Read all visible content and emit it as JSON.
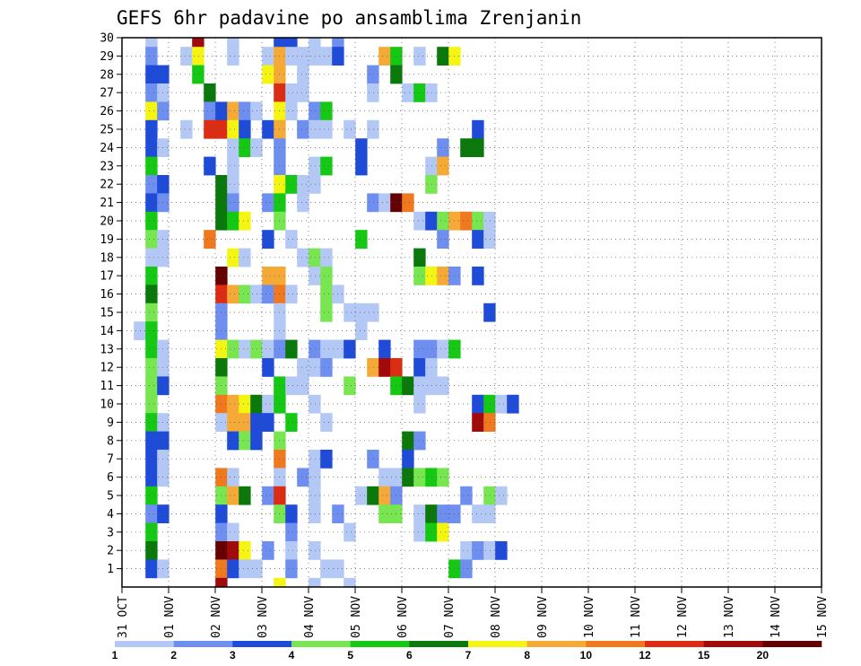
{
  "chart_data": {
    "type": "heatmap",
    "title": "GEFS 6hr padavine po ansamblima Zrenjanin",
    "x_tick_labels": [
      "31 OCT",
      "01 NOV",
      "02 NOV",
      "03 NOV",
      "04 NOV",
      "05 NOV",
      "06 NOV",
      "07 NOV",
      "08 NOV",
      "09 NOV",
      "10 NOV",
      "11 NOV",
      "12 NOV",
      "13 NOV",
      "14 NOV",
      "15 NOV"
    ],
    "y_tick_labels": [
      "1",
      "2",
      "3",
      "4",
      "5",
      "6",
      "7",
      "8",
      "9",
      "10",
      "11",
      "12",
      "13",
      "14",
      "15",
      "16",
      "17",
      "18",
      "19",
      "20",
      "21",
      "22",
      "23",
      "24",
      "25",
      "26",
      "27",
      "28",
      "29",
      "30"
    ],
    "ylim": [
      0,
      30
    ],
    "grid": true,
    "colorbar": {
      "labels": [
        "1",
        "2",
        "3",
        "4",
        "5",
        "6",
        "7",
        "8",
        "10",
        "12",
        "15",
        "20"
      ],
      "colors": [
        "#b4c8f5",
        "#6e8ef0",
        "#1e4bd8",
        "#78e650",
        "#14c814",
        "#0a780a",
        "#f5f514",
        "#f5aa37",
        "#f0781e",
        "#dc2d14",
        "#a00a0a",
        "#640000"
      ]
    },
    "cells": [
      [
        1,
        30,
        0
      ],
      [
        5,
        30,
        10
      ],
      [
        8,
        30,
        0
      ],
      [
        12,
        30,
        2
      ],
      [
        13,
        30,
        2
      ],
      [
        15,
        30,
        0
      ],
      [
        17,
        30,
        1
      ],
      [
        1,
        29,
        1
      ],
      [
        4,
        29,
        0
      ],
      [
        5,
        29,
        6
      ],
      [
        8,
        29,
        0
      ],
      [
        11,
        29,
        0
      ],
      [
        12,
        29,
        7
      ],
      [
        13,
        29,
        0
      ],
      [
        14,
        29,
        0
      ],
      [
        15,
        29,
        0
      ],
      [
        16,
        29,
        0
      ],
      [
        17,
        29,
        2
      ],
      [
        21,
        29,
        7
      ],
      [
        22,
        29,
        4
      ],
      [
        24,
        29,
        0
      ],
      [
        26,
        29,
        5
      ],
      [
        27,
        29,
        6
      ],
      [
        1,
        28,
        2
      ],
      [
        2,
        28,
        2
      ],
      [
        5,
        28,
        4
      ],
      [
        11,
        28,
        6
      ],
      [
        12,
        28,
        7
      ],
      [
        14,
        28,
        0
      ],
      [
        20,
        28,
        1
      ],
      [
        22,
        28,
        5
      ],
      [
        1,
        27,
        1
      ],
      [
        2,
        27,
        0
      ],
      [
        6,
        27,
        5
      ],
      [
        12,
        27,
        9
      ],
      [
        13,
        27,
        0
      ],
      [
        14,
        27,
        0
      ],
      [
        20,
        27,
        0
      ],
      [
        23,
        27,
        0
      ],
      [
        24,
        27,
        4
      ],
      [
        25,
        27,
        0
      ],
      [
        1,
        26,
        6
      ],
      [
        2,
        26,
        1
      ],
      [
        6,
        26,
        1
      ],
      [
        7,
        26,
        2
      ],
      [
        8,
        26,
        7
      ],
      [
        9,
        26,
        1
      ],
      [
        10,
        26,
        0
      ],
      [
        12,
        26,
        6
      ],
      [
        13,
        26,
        0
      ],
      [
        15,
        26,
        1
      ],
      [
        16,
        26,
        4
      ],
      [
        1,
        25,
        2
      ],
      [
        4,
        25,
        0
      ],
      [
        6,
        25,
        9
      ],
      [
        7,
        25,
        9
      ],
      [
        8,
        25,
        6
      ],
      [
        9,
        25,
        2
      ],
      [
        11,
        25,
        2
      ],
      [
        12,
        25,
        7
      ],
      [
        14,
        25,
        1
      ],
      [
        15,
        25,
        0
      ],
      [
        16,
        25,
        0
      ],
      [
        18,
        25,
        0
      ],
      [
        20,
        25,
        0
      ],
      [
        29,
        25,
        2
      ],
      [
        1,
        24,
        2
      ],
      [
        2,
        24,
        0
      ],
      [
        8,
        24,
        0
      ],
      [
        9,
        24,
        4
      ],
      [
        10,
        24,
        0
      ],
      [
        12,
        24,
        1
      ],
      [
        19,
        24,
        2
      ],
      [
        26,
        24,
        1
      ],
      [
        28,
        24,
        5
      ],
      [
        29,
        24,
        5
      ],
      [
        1,
        23,
        4
      ],
      [
        6,
        23,
        2
      ],
      [
        8,
        23,
        0
      ],
      [
        12,
        23,
        1
      ],
      [
        15,
        23,
        0
      ],
      [
        16,
        23,
        4
      ],
      [
        19,
        23,
        2
      ],
      [
        25,
        23,
        0
      ],
      [
        26,
        23,
        7
      ],
      [
        1,
        22,
        1
      ],
      [
        2,
        22,
        2
      ],
      [
        7,
        22,
        5
      ],
      [
        8,
        22,
        0
      ],
      [
        12,
        22,
        6
      ],
      [
        13,
        22,
        4
      ],
      [
        14,
        22,
        0
      ],
      [
        15,
        22,
        0
      ],
      [
        25,
        22,
        3
      ],
      [
        1,
        21,
        2
      ],
      [
        2,
        21,
        1
      ],
      [
        7,
        21,
        5
      ],
      [
        8,
        21,
        1
      ],
      [
        11,
        21,
        1
      ],
      [
        12,
        21,
        4
      ],
      [
        14,
        21,
        0
      ],
      [
        20,
        21,
        1
      ],
      [
        21,
        21,
        0
      ],
      [
        22,
        21,
        11
      ],
      [
        23,
        21,
        8
      ],
      [
        1,
        20,
        4
      ],
      [
        7,
        20,
        5
      ],
      [
        8,
        20,
        4
      ],
      [
        9,
        20,
        6
      ],
      [
        12,
        20,
        3
      ],
      [
        24,
        20,
        0
      ],
      [
        25,
        20,
        2
      ],
      [
        26,
        20,
        3
      ],
      [
        27,
        20,
        7
      ],
      [
        28,
        20,
        8
      ],
      [
        29,
        20,
        3
      ],
      [
        30,
        20,
        0
      ],
      [
        1,
        19,
        3
      ],
      [
        2,
        19,
        0
      ],
      [
        6,
        19,
        8
      ],
      [
        11,
        19,
        2
      ],
      [
        13,
        19,
        0
      ],
      [
        19,
        19,
        4
      ],
      [
        26,
        19,
        1
      ],
      [
        29,
        19,
        2
      ],
      [
        30,
        19,
        0
      ],
      [
        1,
        18,
        0
      ],
      [
        2,
        18,
        0
      ],
      [
        8,
        18,
        6
      ],
      [
        9,
        18,
        0
      ],
      [
        14,
        18,
        0
      ],
      [
        15,
        18,
        3
      ],
      [
        16,
        18,
        0
      ],
      [
        24,
        18,
        5
      ],
      [
        1,
        17,
        4
      ],
      [
        7,
        17,
        11
      ],
      [
        11,
        17,
        7
      ],
      [
        12,
        17,
        7
      ],
      [
        15,
        17,
        0
      ],
      [
        16,
        17,
        3
      ],
      [
        24,
        17,
        3
      ],
      [
        25,
        17,
        6
      ],
      [
        26,
        17,
        7
      ],
      [
        27,
        17,
        1
      ],
      [
        29,
        17,
        2
      ],
      [
        1,
        16,
        5
      ],
      [
        7,
        16,
        9
      ],
      [
        8,
        16,
        7
      ],
      [
        9,
        16,
        3
      ],
      [
        10,
        16,
        0
      ],
      [
        11,
        16,
        1
      ],
      [
        12,
        16,
        8
      ],
      [
        13,
        16,
        0
      ],
      [
        16,
        16,
        3
      ],
      [
        17,
        16,
        0
      ],
      [
        1,
        15,
        3
      ],
      [
        7,
        15,
        1
      ],
      [
        12,
        15,
        0
      ],
      [
        16,
        15,
        3
      ],
      [
        18,
        15,
        0
      ],
      [
        19,
        15,
        0
      ],
      [
        20,
        15,
        0
      ],
      [
        30,
        15,
        2
      ],
      [
        0,
        14,
        0
      ],
      [
        1,
        14,
        4
      ],
      [
        7,
        14,
        1
      ],
      [
        12,
        14,
        0
      ],
      [
        19,
        14,
        0
      ],
      [
        1,
        13,
        4
      ],
      [
        2,
        13,
        0
      ],
      [
        7,
        13,
        6
      ],
      [
        8,
        13,
        3
      ],
      [
        9,
        13,
        0
      ],
      [
        10,
        13,
        3
      ],
      [
        11,
        13,
        0
      ],
      [
        12,
        13,
        1
      ],
      [
        13,
        13,
        5
      ],
      [
        15,
        13,
        1
      ],
      [
        16,
        13,
        0
      ],
      [
        17,
        13,
        0
      ],
      [
        18,
        13,
        2
      ],
      [
        21,
        13,
        2
      ],
      [
        24,
        13,
        1
      ],
      [
        25,
        13,
        1
      ],
      [
        26,
        13,
        0
      ],
      [
        27,
        13,
        4
      ],
      [
        1,
        12,
        3
      ],
      [
        2,
        12,
        0
      ],
      [
        7,
        12,
        5
      ],
      [
        11,
        12,
        2
      ],
      [
        14,
        12,
        0
      ],
      [
        15,
        12,
        0
      ],
      [
        16,
        12,
        1
      ],
      [
        20,
        12,
        7
      ],
      [
        21,
        12,
        10
      ],
      [
        22,
        12,
        9
      ],
      [
        24,
        12,
        2
      ],
      [
        25,
        12,
        0
      ],
      [
        1,
        11,
        3
      ],
      [
        2,
        11,
        2
      ],
      [
        7,
        11,
        3
      ],
      [
        12,
        11,
        4
      ],
      [
        13,
        11,
        0
      ],
      [
        14,
        11,
        0
      ],
      [
        18,
        11,
        3
      ],
      [
        22,
        11,
        4
      ],
      [
        23,
        11,
        5
      ],
      [
        24,
        11,
        0
      ],
      [
        25,
        11,
        0
      ],
      [
        26,
        11,
        0
      ],
      [
        1,
        10,
        3
      ],
      [
        7,
        10,
        8
      ],
      [
        8,
        10,
        7
      ],
      [
        9,
        10,
        6
      ],
      [
        10,
        10,
        5
      ],
      [
        11,
        10,
        0
      ],
      [
        12,
        10,
        4
      ],
      [
        15,
        10,
        0
      ],
      [
        24,
        10,
        0
      ],
      [
        29,
        10,
        2
      ],
      [
        30,
        10,
        4
      ],
      [
        31,
        10,
        0
      ],
      [
        32,
        10,
        2
      ],
      [
        1,
        9,
        4
      ],
      [
        2,
        9,
        0
      ],
      [
        7,
        9,
        0
      ],
      [
        8,
        9,
        7
      ],
      [
        9,
        9,
        7
      ],
      [
        10,
        9,
        2
      ],
      [
        11,
        9,
        2
      ],
      [
        13,
        9,
        4
      ],
      [
        16,
        9,
        0
      ],
      [
        29,
        9,
        10
      ],
      [
        30,
        9,
        8
      ],
      [
        1,
        8,
        2
      ],
      [
        2,
        8,
        2
      ],
      [
        8,
        8,
        2
      ],
      [
        9,
        8,
        3
      ],
      [
        10,
        8,
        2
      ],
      [
        12,
        8,
        3
      ],
      [
        23,
        8,
        5
      ],
      [
        24,
        8,
        1
      ],
      [
        1,
        7,
        2
      ],
      [
        2,
        7,
        0
      ],
      [
        12,
        7,
        8
      ],
      [
        15,
        7,
        0
      ],
      [
        16,
        7,
        2
      ],
      [
        20,
        7,
        1
      ],
      [
        23,
        7,
        2
      ],
      [
        1,
        6,
        2
      ],
      [
        2,
        6,
        0
      ],
      [
        7,
        6,
        8
      ],
      [
        8,
        6,
        0
      ],
      [
        12,
        6,
        0
      ],
      [
        14,
        6,
        1
      ],
      [
        15,
        6,
        0
      ],
      [
        21,
        6,
        0
      ],
      [
        22,
        6,
        0
      ],
      [
        23,
        6,
        5
      ],
      [
        24,
        6,
        3
      ],
      [
        25,
        6,
        4
      ],
      [
        26,
        6,
        3
      ],
      [
        1,
        5,
        4
      ],
      [
        7,
        5,
        3
      ],
      [
        8,
        5,
        7
      ],
      [
        9,
        5,
        5
      ],
      [
        11,
        5,
        1
      ],
      [
        12,
        5,
        9
      ],
      [
        15,
        5,
        0
      ],
      [
        19,
        5,
        0
      ],
      [
        20,
        5,
        5
      ],
      [
        21,
        5,
        7
      ],
      [
        22,
        5,
        1
      ],
      [
        28,
        5,
        1
      ],
      [
        30,
        5,
        3
      ],
      [
        31,
        5,
        0
      ],
      [
        1,
        4,
        1
      ],
      [
        2,
        4,
        2
      ],
      [
        7,
        4,
        2
      ],
      [
        12,
        4,
        3
      ],
      [
        13,
        4,
        2
      ],
      [
        15,
        4,
        0
      ],
      [
        17,
        4,
        1
      ],
      [
        21,
        4,
        3
      ],
      [
        22,
        4,
        3
      ],
      [
        24,
        4,
        0
      ],
      [
        25,
        4,
        5
      ],
      [
        26,
        4,
        1
      ],
      [
        27,
        4,
        1
      ],
      [
        29,
        4,
        0
      ],
      [
        30,
        4,
        0
      ],
      [
        1,
        3,
        4
      ],
      [
        7,
        3,
        1
      ],
      [
        8,
        3,
        0
      ],
      [
        13,
        3,
        1
      ],
      [
        18,
        3,
        0
      ],
      [
        24,
        3,
        0
      ],
      [
        25,
        3,
        4
      ],
      [
        26,
        3,
        6
      ],
      [
        1,
        2,
        5
      ],
      [
        7,
        2,
        11
      ],
      [
        8,
        2,
        10
      ],
      [
        9,
        2,
        6
      ],
      [
        11,
        2,
        1
      ],
      [
        13,
        2,
        0
      ],
      [
        15,
        2,
        0
      ],
      [
        28,
        2,
        0
      ],
      [
        29,
        2,
        1
      ],
      [
        30,
        2,
        0
      ],
      [
        31,
        2,
        2
      ],
      [
        1,
        1,
        2
      ],
      [
        2,
        1,
        0
      ],
      [
        7,
        1,
        8
      ],
      [
        8,
        1,
        2
      ],
      [
        9,
        1,
        0
      ],
      [
        10,
        1,
        0
      ],
      [
        13,
        1,
        1
      ],
      [
        16,
        1,
        0
      ],
      [
        17,
        1,
        0
      ],
      [
        27,
        1,
        4
      ],
      [
        28,
        1,
        1
      ],
      [
        7,
        0,
        10
      ],
      [
        12,
        0,
        6
      ],
      [
        15,
        0,
        0
      ],
      [
        18,
        0,
        0
      ]
    ]
  }
}
